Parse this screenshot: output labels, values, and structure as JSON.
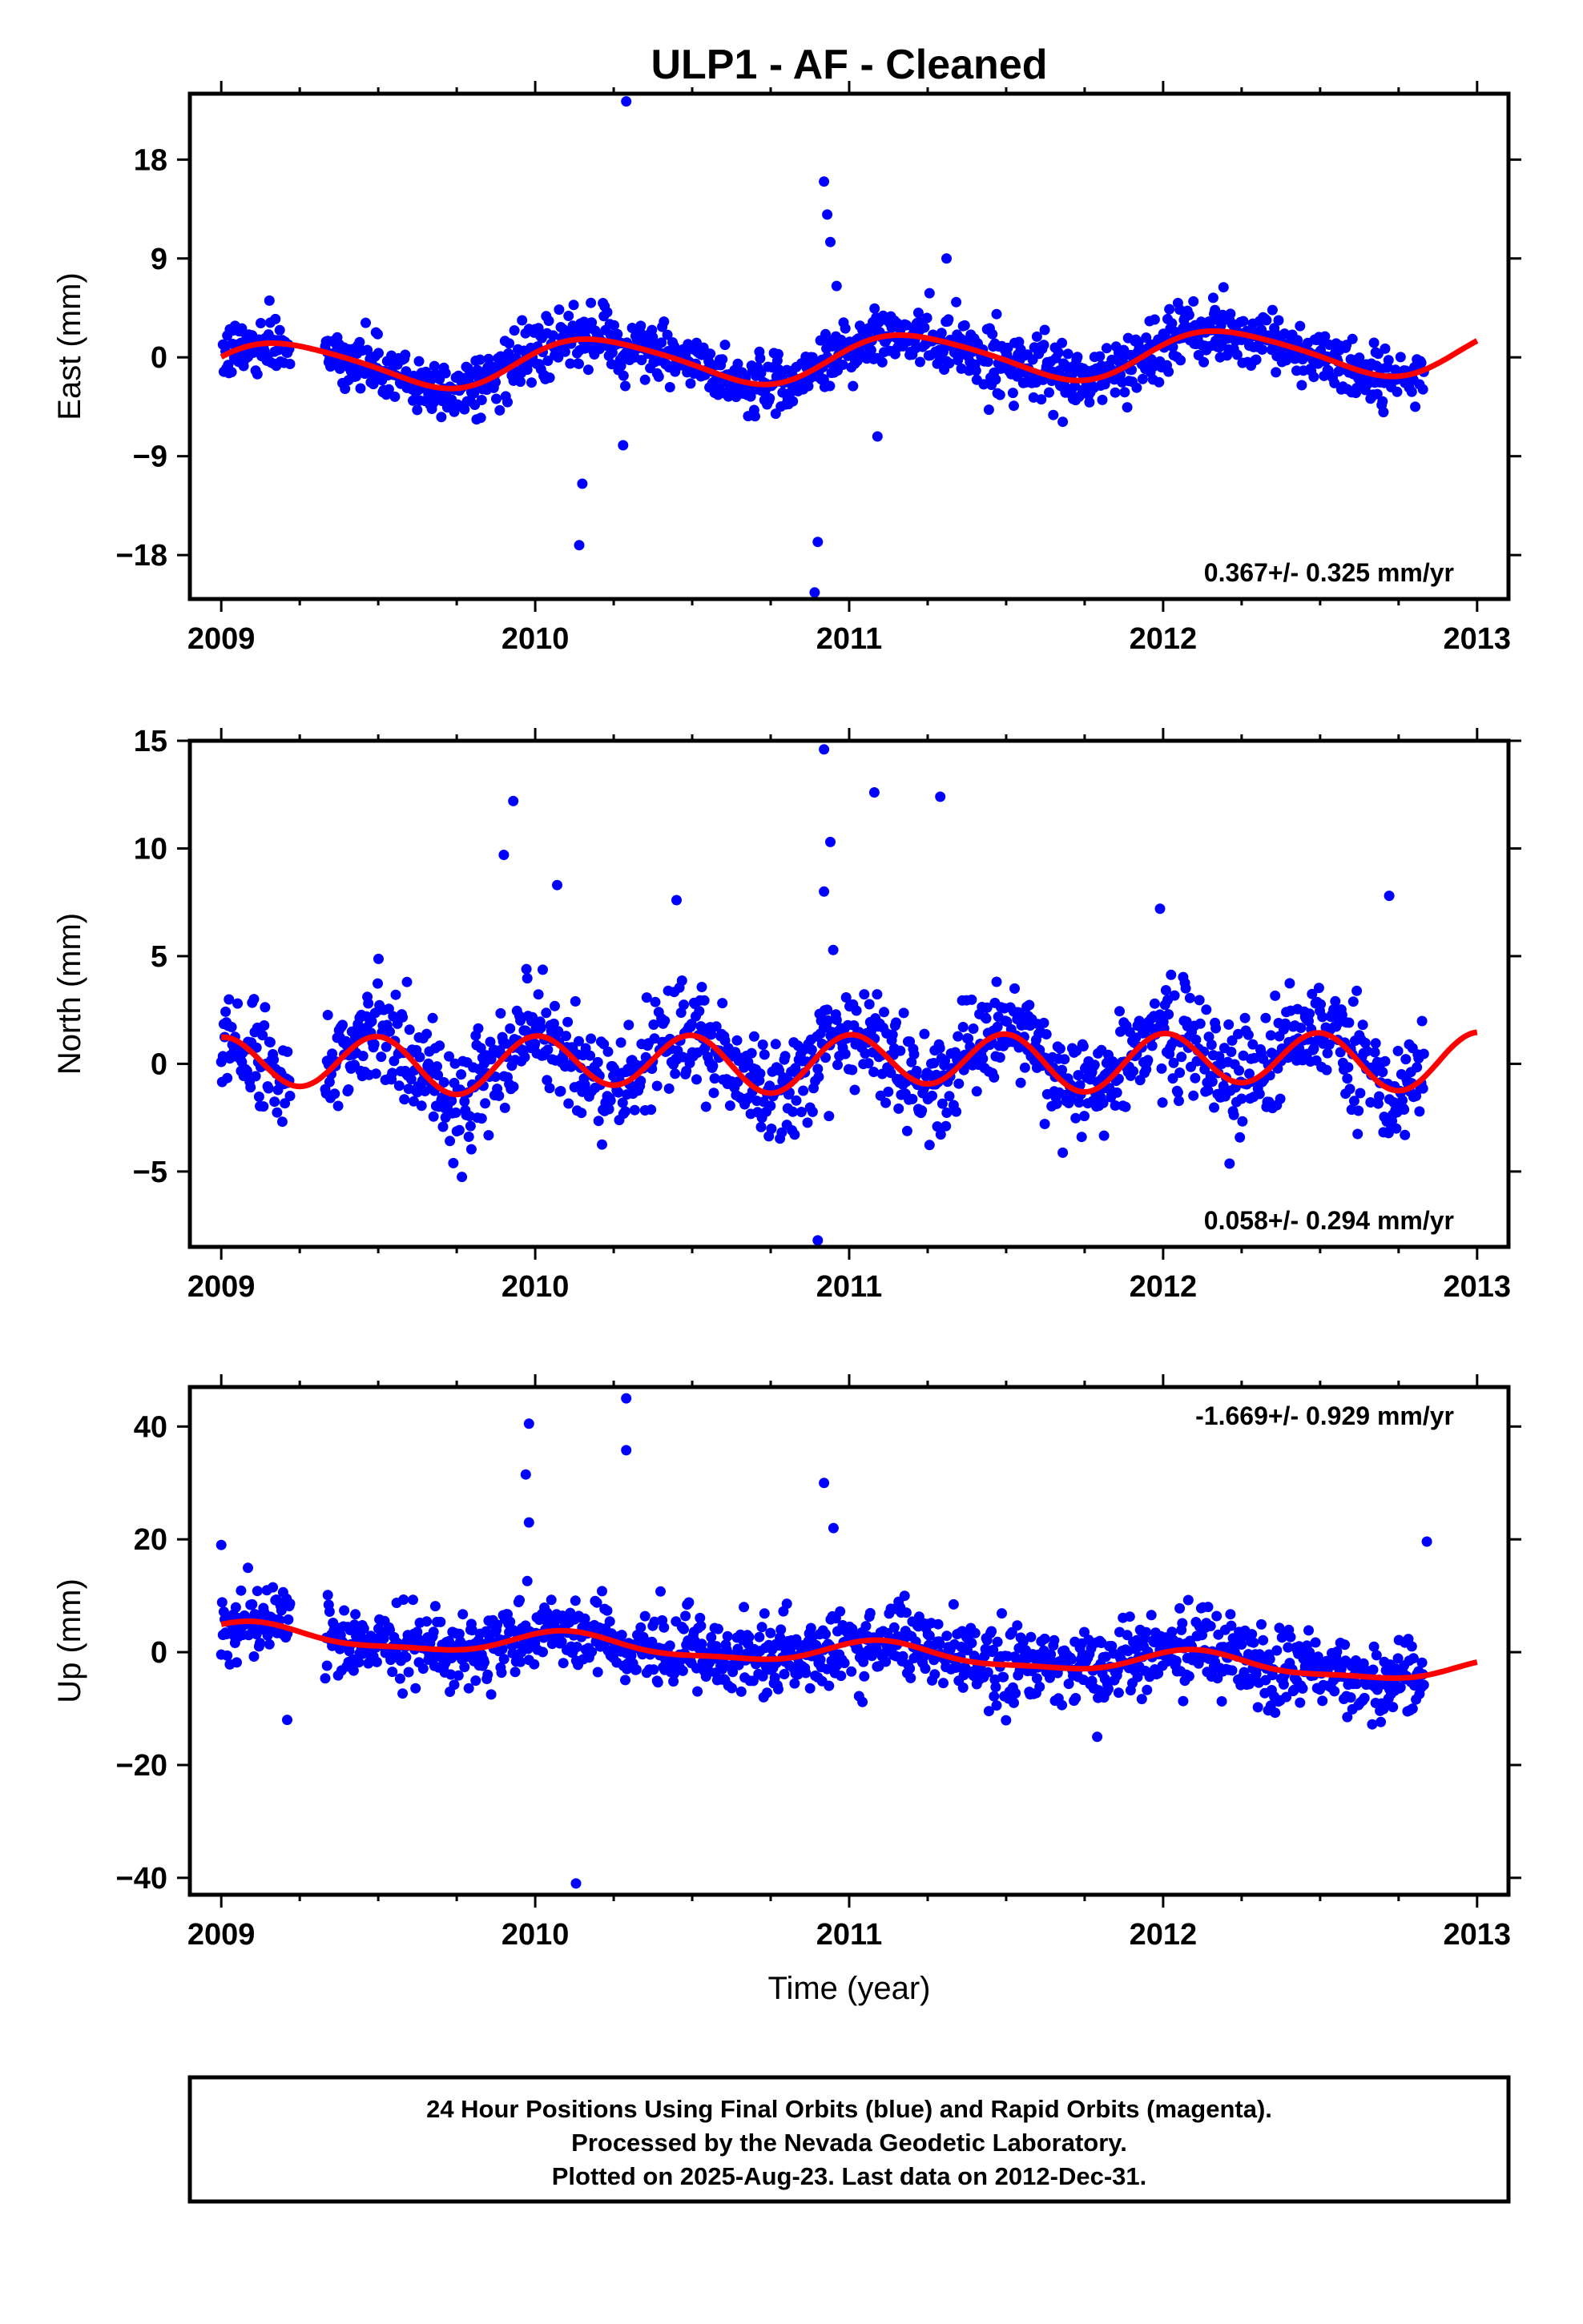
{
  "title": "ULP1  - AF - Cleaned",
  "colors": {
    "points": "#0000ff",
    "fit": "#ff0000",
    "frame": "#000000"
  },
  "footer": {
    "line1": "24 Hour Positions Using Final Orbits (blue) and Rapid Orbits (magenta).",
    "line2": "Processed by the Nevada Geodetic Laboratory.",
    "line3": "Plotted on 2025-Aug-23. Last data on 2012-Dec-31."
  },
  "chart_data": [
    {
      "type": "scatter",
      "ylabel": "East (mm)",
      "xlim": [
        2008.9,
        2013.1
      ],
      "ylim": [
        -22,
        24
      ],
      "xticks": [
        2009,
        2010,
        2011,
        2012,
        2013
      ],
      "xtick_labels": [
        "2009",
        "2010",
        "2011",
        "2012",
        "2013"
      ],
      "yticks": [
        -18,
        -9,
        0,
        9,
        18
      ],
      "ytick_labels": [
        "−18",
        "−9",
        "0",
        "9",
        "18"
      ],
      "rate_text": "0.367+/- 0.325 mm/yr",
      "rate_position": "bottom-right",
      "fit": {
        "offset": -0.1,
        "annual_amp": 2.1,
        "annual_phase": 0.3,
        "semi_amp": 0.3,
        "semi_phase": 1.0,
        "rate": 0.367
      },
      "series_points": {
        "generated_from_fit": true,
        "scatter_sd": 1.3,
        "days": 1400,
        "outliers": [
          {
            "x": 2010.29,
            "y": 23.3
          },
          {
            "x": 2010.92,
            "y": 16
          },
          {
            "x": 2010.93,
            "y": 13
          },
          {
            "x": 2010.94,
            "y": 10.5
          },
          {
            "x": 2010.96,
            "y": 6.5
          },
          {
            "x": 2010.9,
            "y": -16.8
          },
          {
            "x": 2010.89,
            "y": -21.4
          },
          {
            "x": 2010.15,
            "y": -11.5
          },
          {
            "x": 2010.14,
            "y": -17.1
          },
          {
            "x": 2010.28,
            "y": -8
          },
          {
            "x": 2011.31,
            "y": 9
          },
          {
            "x": 2011.09,
            "y": -7.2
          }
        ]
      }
    },
    {
      "type": "scatter",
      "ylabel": "North (mm)",
      "xlim": [
        2008.9,
        2013.1
      ],
      "ylim": [
        -8.5,
        15
      ],
      "xticks": [
        2009,
        2010,
        2011,
        2012,
        2013
      ],
      "xtick_labels": [
        "2009",
        "2010",
        "2011",
        "2012",
        "2013"
      ],
      "yticks": [
        -5,
        0,
        5,
        10,
        15
      ],
      "ytick_labels": [
        "−5",
        "0",
        "5",
        "10",
        "15"
      ],
      "rate_text": "0.058+/- 0.294 mm/yr",
      "rate_position": "bottom-right",
      "fit": {
        "offset": 0.1,
        "annual_amp": 0.2,
        "annual_phase": 0.0,
        "semi_amp": 1.25,
        "semi_phase": 1.57,
        "rate": 0.058
      },
      "series_points": {
        "generated_from_fit": true,
        "scatter_sd": 1.2,
        "days": 1400,
        "outliers": [
          {
            "x": 2010.92,
            "y": 14.6
          },
          {
            "x": 2011.08,
            "y": 12.6
          },
          {
            "x": 2011.29,
            "y": 12.4
          },
          {
            "x": 2009.93,
            "y": 12.2
          },
          {
            "x": 2010.94,
            "y": 10.3
          },
          {
            "x": 2009.9,
            "y": 9.7
          },
          {
            "x": 2010.07,
            "y": 8.3
          },
          {
            "x": 2010.92,
            "y": 8
          },
          {
            "x": 2012.72,
            "y": 7.8
          },
          {
            "x": 2010.45,
            "y": 7.6
          },
          {
            "x": 2011.99,
            "y": 7.2
          },
          {
            "x": 2010.9,
            "y": -8.2
          }
        ]
      }
    },
    {
      "type": "scatter",
      "ylabel": "Up (mm)",
      "xlabel": "Time (year)",
      "xlim": [
        2008.9,
        2013.1
      ],
      "ylim": [
        -43,
        47
      ],
      "xticks": [
        2009,
        2010,
        2011,
        2012,
        2013
      ],
      "xtick_labels": [
        "2009",
        "2010",
        "2011",
        "2012",
        "2013"
      ],
      "yticks": [
        -40,
        -20,
        0,
        20,
        40
      ],
      "ytick_labels": [
        "−40",
        "−20",
        "0",
        "20",
        "40"
      ],
      "rate_text": "-1.669+/- 0.929 mm/yr",
      "rate_position": "top-right",
      "fit": {
        "offset": -0.2,
        "annual_amp": 1.9,
        "annual_phase": 0.9,
        "semi_amp": 0.6,
        "semi_phase": 0.5,
        "rate": -1.669
      },
      "series_points": {
        "generated_from_fit": true,
        "scatter_sd": 3.3,
        "days": 1400,
        "outliers": [
          {
            "x": 2010.29,
            "y": 45
          },
          {
            "x": 2009.98,
            "y": 40.5
          },
          {
            "x": 2010.29,
            "y": 35.8
          },
          {
            "x": 2009.97,
            "y": 31.5
          },
          {
            "x": 2010.92,
            "y": 30
          },
          {
            "x": 2009.98,
            "y": 23
          },
          {
            "x": 2010.95,
            "y": 22
          },
          {
            "x": 2012.84,
            "y": 19.6
          },
          {
            "x": 2009.0,
            "y": 19
          },
          {
            "x": 2010.13,
            "y": -41
          },
          {
            "x": 2009.21,
            "y": -12
          },
          {
            "x": 2011.79,
            "y": -15
          }
        ]
      }
    }
  ]
}
